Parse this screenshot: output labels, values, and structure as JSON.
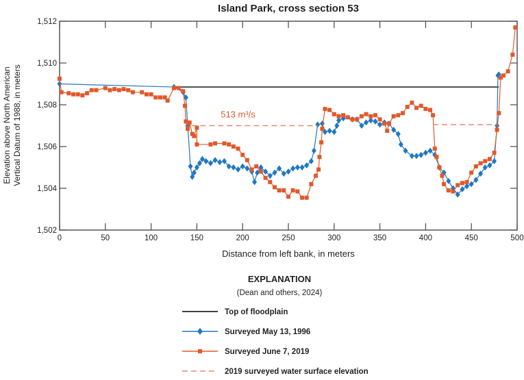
{
  "chart_data": {
    "type": "line",
    "title": "Island Park, cross section 53",
    "xlabel": "Distance from left bank, in meters",
    "ylabel": [
      "Elevation above North American",
      "Vertical Datum of 1988, in meters"
    ],
    "xlim": [
      0,
      500
    ],
    "ylim": [
      1502,
      1512
    ],
    "xticks": [
      0,
      50,
      100,
      150,
      200,
      250,
      300,
      350,
      400,
      450,
      500
    ],
    "yticks": [
      1502,
      1504,
      1506,
      1508,
      1510,
      1512
    ],
    "ytick_labels": [
      "1,502",
      "1,504",
      "1,506",
      "1,508",
      "1,510",
      "1,512"
    ],
    "grid": false,
    "annotation": {
      "text": "513 m³/s",
      "x": 195,
      "y": 1507.4,
      "color": "#e0592a"
    },
    "legend": {
      "title": "EXPLANATION",
      "subtitle": "(Dean and others, 2024)",
      "placement": "bottom"
    },
    "series": [
      {
        "name": "Top of floodplain",
        "color": "#000000",
        "style": "solid",
        "marker": "none",
        "points": [
          [
            125,
            1508.85
          ],
          [
            480,
            1508.85
          ]
        ]
      },
      {
        "name": "Surveyed May 13, 1996",
        "color": "#1f77c4",
        "style": "solid",
        "marker": "diamond",
        "points": [
          [
            0,
            1509.0
          ],
          [
            125,
            1508.85
          ],
          [
            135,
            1508.6
          ],
          [
            138,
            1508.35
          ],
          [
            140,
            1507.0
          ],
          [
            143,
            1505.05
          ],
          [
            145,
            1504.55
          ],
          [
            147,
            1504.75
          ],
          [
            150,
            1505.0
          ],
          [
            153,
            1505.2
          ],
          [
            156,
            1505.4
          ],
          [
            160,
            1505.3
          ],
          [
            165,
            1505.2
          ],
          [
            170,
            1505.35
          ],
          [
            175,
            1505.25
          ],
          [
            180,
            1505.3
          ],
          [
            185,
            1505.05
          ],
          [
            190,
            1505.0
          ],
          [
            195,
            1504.9
          ],
          [
            200,
            1505.05
          ],
          [
            205,
            1504.95
          ],
          [
            210,
            1504.8
          ],
          [
            213,
            1504.3
          ],
          [
            216,
            1504.75
          ],
          [
            220,
            1505.0
          ],
          [
            225,
            1504.8
          ],
          [
            230,
            1504.6
          ],
          [
            235,
            1504.75
          ],
          [
            240,
            1504.95
          ],
          [
            245,
            1504.7
          ],
          [
            250,
            1504.8
          ],
          [
            255,
            1504.95
          ],
          [
            260,
            1505.0
          ],
          [
            265,
            1505.0
          ],
          [
            270,
            1505.1
          ],
          [
            275,
            1505.3
          ],
          [
            278,
            1505.8
          ],
          [
            282,
            1507.05
          ],
          [
            287,
            1507.1
          ],
          [
            290,
            1506.7
          ],
          [
            295,
            1506.75
          ],
          [
            300,
            1506.7
          ],
          [
            303,
            1507.0
          ],
          [
            305,
            1507.25
          ],
          [
            310,
            1507.35
          ],
          [
            320,
            1507.3
          ],
          [
            325,
            1507.3
          ],
          [
            330,
            1507.0
          ],
          [
            335,
            1507.15
          ],
          [
            340,
            1507.25
          ],
          [
            345,
            1507.2
          ],
          [
            350,
            1507.05
          ],
          [
            355,
            1507.15
          ],
          [
            360,
            1507.1
          ],
          [
            365,
            1506.8
          ],
          [
            370,
            1506.6
          ],
          [
            373,
            1506.1
          ],
          [
            378,
            1505.8
          ],
          [
            385,
            1505.55
          ],
          [
            390,
            1505.55
          ],
          [
            395,
            1505.6
          ],
          [
            400,
            1505.7
          ],
          [
            405,
            1505.8
          ],
          [
            410,
            1505.6
          ],
          [
            415,
            1505.0
          ],
          [
            420,
            1504.75
          ],
          [
            425,
            1504.35
          ],
          [
            430,
            1504.0
          ],
          [
            435,
            1503.7
          ],
          [
            440,
            1503.95
          ],
          [
            445,
            1504.1
          ],
          [
            450,
            1504.2
          ],
          [
            455,
            1504.4
          ],
          [
            460,
            1504.7
          ],
          [
            465,
            1505.0
          ],
          [
            470,
            1505.1
          ],
          [
            475,
            1505.3
          ],
          [
            478,
            1507.0
          ],
          [
            479,
            1509.4
          ],
          [
            480,
            1509.45
          ]
        ]
      },
      {
        "name": "Surveyed June 7, 2019",
        "color": "#e0592a",
        "style": "solid",
        "marker": "square",
        "points": [
          [
            0,
            1509.25
          ],
          [
            2,
            1508.6
          ],
          [
            10,
            1508.55
          ],
          [
            15,
            1508.5
          ],
          [
            20,
            1508.5
          ],
          [
            25,
            1508.45
          ],
          [
            30,
            1508.55
          ],
          [
            35,
            1508.7
          ],
          [
            40,
            1508.7
          ],
          [
            50,
            1508.8
          ],
          [
            55,
            1508.7
          ],
          [
            60,
            1508.75
          ],
          [
            65,
            1508.7
          ],
          [
            70,
            1508.75
          ],
          [
            75,
            1508.7
          ],
          [
            80,
            1508.6
          ],
          [
            90,
            1508.6
          ],
          [
            95,
            1508.5
          ],
          [
            100,
            1508.5
          ],
          [
            105,
            1508.35
          ],
          [
            110,
            1508.35
          ],
          [
            115,
            1508.35
          ],
          [
            118,
            1508.2
          ],
          [
            125,
            1508.8
          ],
          [
            130,
            1508.8
          ],
          [
            135,
            1508.65
          ],
          [
            137,
            1507.95
          ],
          [
            138,
            1507.2
          ],
          [
            140,
            1506.85
          ],
          [
            142,
            1507.15
          ],
          [
            145,
            1506.6
          ],
          [
            147,
            1506.5
          ],
          [
            150,
            1506.9
          ],
          [
            150,
            1506.1
          ],
          [
            165,
            1506.1
          ],
          [
            170,
            1506.15
          ],
          [
            180,
            1506.15
          ],
          [
            185,
            1506.1
          ],
          [
            190,
            1506.0
          ],
          [
            195,
            1505.9
          ],
          [
            200,
            1505.6
          ],
          [
            205,
            1505.35
          ],
          [
            210,
            1504.9
          ],
          [
            215,
            1505.05
          ],
          [
            220,
            1504.8
          ],
          [
            225,
            1504.5
          ],
          [
            230,
            1504.3
          ],
          [
            235,
            1504.05
          ],
          [
            240,
            1503.9
          ],
          [
            245,
            1503.9
          ],
          [
            250,
            1503.6
          ],
          [
            255,
            1503.9
          ],
          [
            260,
            1503.85
          ],
          [
            265,
            1503.55
          ],
          [
            270,
            1503.55
          ],
          [
            275,
            1504.2
          ],
          [
            280,
            1504.6
          ],
          [
            283,
            1504.9
          ],
          [
            284,
            1505.5
          ],
          [
            286,
            1506.2
          ],
          [
            287,
            1506.85
          ],
          [
            290,
            1507.8
          ],
          [
            295,
            1507.75
          ],
          [
            300,
            1507.55
          ],
          [
            305,
            1507.45
          ],
          [
            310,
            1507.5
          ],
          [
            315,
            1507.4
          ],
          [
            320,
            1507.3
          ],
          [
            325,
            1507.3
          ],
          [
            330,
            1507.45
          ],
          [
            335,
            1507.55
          ],
          [
            340,
            1507.45
          ],
          [
            345,
            1507.5
          ],
          [
            350,
            1507.3
          ],
          [
            355,
            1507.1
          ],
          [
            358,
            1506.75
          ],
          [
            360,
            1507.1
          ],
          [
            365,
            1507.45
          ],
          [
            370,
            1507.5
          ],
          [
            375,
            1507.6
          ],
          [
            380,
            1507.9
          ],
          [
            385,
            1508.1
          ],
          [
            390,
            1507.85
          ],
          [
            395,
            1507.95
          ],
          [
            400,
            1507.8
          ],
          [
            405,
            1507.75
          ],
          [
            408,
            1507.5
          ],
          [
            410,
            1505.9
          ],
          [
            412,
            1505.5
          ],
          [
            415,
            1505.0
          ],
          [
            418,
            1504.6
          ],
          [
            420,
            1504.2
          ],
          [
            425,
            1503.9
          ],
          [
            430,
            1503.85
          ],
          [
            435,
            1504.15
          ],
          [
            440,
            1504.25
          ],
          [
            445,
            1504.3
          ],
          [
            450,
            1504.75
          ],
          [
            455,
            1505.05
          ],
          [
            460,
            1505.2
          ],
          [
            465,
            1505.3
          ],
          [
            470,
            1505.4
          ],
          [
            475,
            1505.7
          ],
          [
            478,
            1506.8
          ],
          [
            480,
            1507.6
          ],
          [
            482,
            1509.3
          ],
          [
            485,
            1509.4
          ],
          [
            490,
            1509.6
          ],
          [
            495,
            1510.4
          ],
          [
            498,
            1511.7
          ]
        ]
      },
      {
        "name": "2019 surveyed water surface elevation",
        "color": "#e8896a",
        "style": "dashed",
        "marker": "none",
        "segments": [
          [
            [
              144,
              1507.0
            ],
            [
              282,
              1507.0
            ]
          ],
          [
            [
              408,
              1507.05
            ],
            [
              478,
              1507.05
            ]
          ]
        ]
      }
    ]
  }
}
